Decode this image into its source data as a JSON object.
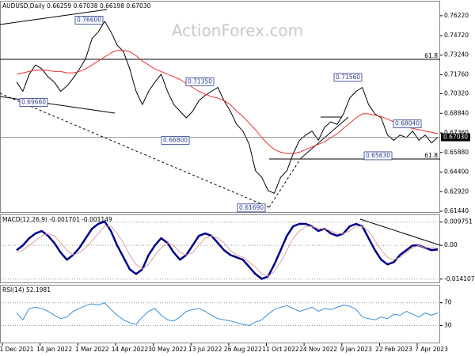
{
  "chart_data": [
    {
      "type": "line",
      "title": "AUDUSD,Daily  0.66259 0.67038 0.66198 0.67030",
      "watermark": "ActionForex.com",
      "ylim": [
        0.6138,
        0.7717
      ],
      "yticks": [
        {
          "value": 0.7622,
          "label": "0.76220"
        },
        {
          "value": 0.7472,
          "label": "0.74720"
        },
        {
          "value": 0.7324,
          "label": "0.73240"
        },
        {
          "value": 0.7176,
          "label": "0.71760"
        },
        {
          "value": 0.7032,
          "label": "0.70320"
        },
        {
          "value": 0.6884,
          "label": "0.68840"
        },
        {
          "value": 0.6736,
          "label": "0.67360"
        },
        {
          "value": 0.6588,
          "label": "0.65880"
        },
        {
          "value": 0.644,
          "label": "0.64400"
        },
        {
          "value": 0.6292,
          "label": "0.62920"
        },
        {
          "value": 0.6144,
          "label": "0.61440"
        }
      ],
      "current_price": {
        "value": 0.6703,
        "label": "0.67030"
      },
      "annotations": [
        {
          "value": 0.766,
          "label": "0.76600"
        },
        {
          "value": 0.6966,
          "label": "0.69660"
        },
        {
          "value": 0.7135,
          "label": "0.71350"
        },
        {
          "value": 0.668,
          "label": "0.66800"
        },
        {
          "value": 0.6169,
          "label": "0.61690"
        },
        {
          "value": 0.7156,
          "label": "0.71560"
        },
        {
          "value": 0.6804,
          "label": "0.68040"
        },
        {
          "value": 0.6563,
          "label": "0.65630"
        }
      ],
      "fib_labels": [
        "61.8",
        "61.8"
      ],
      "series": [
        {
          "color": "#000000",
          "values": [
            0.712,
            0.705,
            0.718,
            0.725,
            0.722,
            0.716,
            0.712,
            0.705,
            0.709,
            0.715,
            0.722,
            0.73,
            0.745,
            0.75,
            0.758,
            0.75,
            0.74,
            0.735,
            0.722,
            0.705,
            0.695,
            0.705,
            0.712,
            0.718,
            0.705,
            0.695,
            0.69,
            0.685,
            0.69,
            0.698,
            0.702,
            0.705,
            0.708,
            0.698,
            0.69,
            0.68,
            0.675,
            0.665,
            0.645,
            0.64,
            0.63,
            0.628,
            0.64,
            0.645,
            0.658,
            0.668,
            0.672,
            0.675,
            0.668,
            0.678,
            0.682,
            0.68,
            0.688,
            0.7,
            0.705,
            0.708,
            0.695,
            0.688,
            0.685,
            0.672,
            0.668,
            0.672,
            0.67,
            0.675,
            0.668,
            0.672,
            0.666,
            0.6703
          ]
        },
        {
          "color": "#e8312f",
          "values": [
            0.718,
            0.719,
            0.72,
            0.721,
            0.721,
            0.721,
            0.72,
            0.72,
            0.719,
            0.719,
            0.72,
            0.722,
            0.725,
            0.728,
            0.731,
            0.734,
            0.736,
            0.736,
            0.735,
            0.732,
            0.728,
            0.725,
            0.722,
            0.72,
            0.718,
            0.716,
            0.714,
            0.711,
            0.708,
            0.705,
            0.703,
            0.701,
            0.7,
            0.698,
            0.695,
            0.69,
            0.686,
            0.681,
            0.676,
            0.67,
            0.665,
            0.661,
            0.659,
            0.658,
            0.658,
            0.659,
            0.661,
            0.663,
            0.665,
            0.667,
            0.67,
            0.673,
            0.677,
            0.681,
            0.685,
            0.688,
            0.688,
            0.687,
            0.686,
            0.684,
            0.682,
            0.68,
            0.678,
            0.677,
            0.676,
            0.675,
            0.674,
            0.673
          ]
        }
      ]
    },
    {
      "type": "line",
      "title": "MACD(12,26,9) -0.001701 -0.001149",
      "ylim": [
        -0.0155,
        0.0123
      ],
      "yticks": [
        0.009751,
        {
          "value": 0,
          "label": "0.00"
        },
        -0.014107
      ],
      "series": [
        {
          "color": "#00008b",
          "values": [
            -0.002,
            0,
            0.003,
            0.005,
            0.006,
            0.004,
            0.001,
            -0.003,
            -0.006,
            -0.004,
            -0.001,
            0.003,
            0.007,
            0.009,
            0.01,
            0.006,
            0,
            -0.005,
            -0.01,
            -0.012,
            -0.01,
            -0.004,
            0,
            0.003,
            0.001,
            -0.003,
            -0.006,
            -0.004,
            0,
            0.004,
            0.005,
            0.004,
            0.001,
            -0.002,
            -0.004,
            -0.005,
            -0.006,
            -0.009,
            -0.012,
            -0.014,
            -0.013,
            -0.008,
            -0.002,
            0.004,
            0.008,
            0.009,
            0.009,
            0.008,
            0.006,
            0.007,
            0.005,
            0.004,
            0.005,
            0.008,
            0.009,
            0.008,
            0.003,
            -0.002,
            -0.006,
            -0.008,
            -0.007,
            -0.004,
            -0.002,
            0,
            0,
            -0.001,
            -0.002,
            -0.001701
          ]
        },
        {
          "color": "#e0a0a0",
          "values": [
            -0.003,
            -0.002,
            0,
            0.002,
            0.004,
            0.005,
            0.004,
            0.001,
            -0.002,
            -0.004,
            -0.003,
            -0.001,
            0.002,
            0.005,
            0.008,
            0.008,
            0.005,
            0.001,
            -0.004,
            -0.008,
            -0.01,
            -0.008,
            -0.004,
            -0.001,
            0.001,
            0,
            -0.003,
            -0.004,
            -0.003,
            0,
            0.003,
            0.004,
            0.003,
            0.001,
            -0.002,
            -0.004,
            -0.005,
            -0.007,
            -0.009,
            -0.012,
            -0.013,
            -0.011,
            -0.007,
            -0.002,
            0.003,
            0.006,
            0.008,
            0.008,
            0.007,
            0.007,
            0.006,
            0.005,
            0.005,
            0.006,
            0.008,
            0.008,
            0.006,
            0.002,
            -0.002,
            -0.005,
            -0.006,
            -0.005,
            -0.003,
            -0.001,
            0,
            -0.001,
            -0.001,
            -0.001149
          ]
        }
      ]
    },
    {
      "type": "line",
      "title": "RSI(14) 52.1981",
      "ylim": [
        0,
        96
      ],
      "yticks": [
        70,
        30
      ],
      "categories": [
        "1 Dec 2021",
        null,
        null,
        null,
        null,
        null,
        "14 Jan 2022",
        null,
        null,
        null,
        null,
        null,
        "1 Mar 2022",
        null,
        null,
        null,
        null,
        null,
        "14 Apr 2022",
        null,
        null,
        null,
        null,
        null,
        "30 May 2022",
        null,
        null,
        null,
        null,
        null,
        "13 Jul 2022",
        null,
        null,
        null,
        null,
        null,
        "26 Aug 2022",
        null,
        null,
        null,
        null,
        null,
        "11 Oct 2022",
        null,
        null,
        null,
        null,
        null,
        "24 Nov 2022",
        null,
        null,
        null,
        null,
        null,
        "9 Jan 2023",
        null,
        null,
        null,
        null,
        null,
        "22 Feb 2023",
        null,
        null,
        null,
        null,
        null,
        "7 Apr 2023",
        null
      ],
      "series": [
        {
          "color": "#3a8fd6",
          "values": [
            52,
            40,
            60,
            62,
            60,
            55,
            48,
            42,
            45,
            55,
            60,
            65,
            68,
            66,
            70,
            58,
            48,
            40,
            35,
            32,
            45,
            55,
            60,
            48,
            40,
            38,
            45,
            55,
            58,
            60,
            55,
            48,
            42,
            40,
            38,
            35,
            32,
            30,
            36,
            40,
            50,
            58,
            62,
            65,
            60,
            55,
            58,
            62,
            55,
            60,
            58,
            62,
            66,
            64,
            58,
            45,
            42,
            40,
            45,
            42,
            50,
            48,
            55,
            50,
            45,
            52,
            48,
            52.1981
          ]
        }
      ]
    }
  ]
}
